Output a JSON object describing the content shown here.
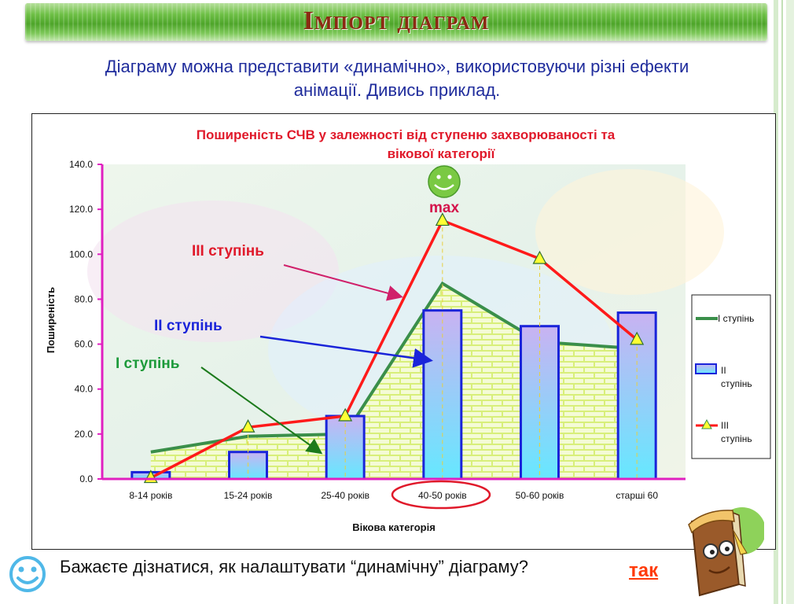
{
  "slide": {
    "title": "Імпорт діаграм",
    "intro_line1": "Діаграму можна представити «динамічно», використовуючи різні ефекти",
    "intro_line2": "анімації. Дивись приклад.",
    "question": "Бажаєте дізнатися,  як налаштувати “динамічну” діаграму?",
    "link": "так",
    "colors": {
      "title_text": "#8b2a13",
      "intro_text": "#1f2c9c",
      "link": "#ff3b0a",
      "title_bar": "#4ea52a"
    },
    "icons": [
      "smiley-face-icon",
      "book-character-icon"
    ]
  },
  "chart_data": {
    "type": "bar",
    "title_line1": "Поширеність  СЧВ  у  залежності  від  ступеню  захворюваності  та",
    "title_line2": "вікової  категорії",
    "xlabel": "Вікова  категорія",
    "ylabel": "Поширеність",
    "ylim": [
      0,
      140
    ],
    "yticks": [
      "0.0",
      "20.0",
      "40.0",
      "60.0",
      "80.0",
      "100.0",
      "120.0",
      "140.0"
    ],
    "categories": [
      "8-14  років",
      "15-24  років",
      "25-40  років",
      "40-50  років",
      "50-60  років",
      "старші  60"
    ],
    "series": [
      {
        "name": "I  ступінь",
        "type": "area",
        "color": "#3a8f4a",
        "values": [
          12,
          19,
          20,
          87,
          61,
          58
        ]
      },
      {
        "name": "II  ступінь",
        "type": "bar",
        "color": "#1a24d9",
        "values": [
          3,
          12,
          28,
          75,
          68,
          74
        ]
      },
      {
        "name": "III  ступінь",
        "type": "line",
        "color": "#ff1a1a",
        "values": [
          0.5,
          23,
          28,
          115,
          98,
          62
        ]
      }
    ],
    "legend": {
      "position": "right",
      "entries": [
        "I  ступінь",
        "II  ступінь",
        "III  ступінь"
      ]
    },
    "annotations": {
      "max": "max",
      "s3": "III  ступінь",
      "s2": "II  ступінь",
      "s1": "I  ступінь"
    },
    "highlighted_category": "40-50  років",
    "grid": false
  }
}
